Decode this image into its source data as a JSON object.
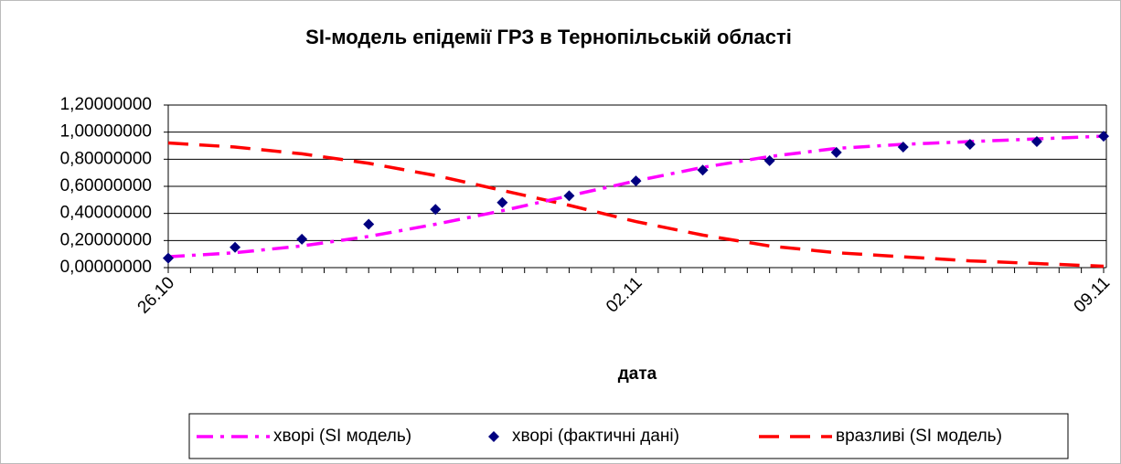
{
  "chart_data": {
    "type": "line",
    "title": "SI-модель епідемії ГРЗ в Тернопільській області",
    "x_label": "дата",
    "categories": [
      "26.10",
      null,
      null,
      null,
      null,
      null,
      null,
      "02.11",
      null,
      null,
      null,
      null,
      null,
      null,
      "09.11"
    ],
    "series": [
      {
        "name": "хворі (SI модель)",
        "color": "#ff00ff",
        "mode": "line",
        "dash": "dash-dot",
        "values": [
          0.08,
          0.11,
          0.16,
          0.23,
          0.32,
          0.42,
          0.53,
          0.64,
          0.74,
          0.82,
          0.88,
          0.91,
          0.93,
          0.95,
          0.97
        ]
      },
      {
        "name": "хворі (фактичні дані)",
        "color": "#000080",
        "mode": "markers",
        "marker": "diamond",
        "values": [
          0.07,
          0.15,
          0.21,
          0.32,
          0.43,
          0.48,
          0.53,
          0.64,
          0.72,
          0.79,
          0.85,
          0.89,
          0.91,
          0.93,
          0.97
        ]
      },
      {
        "name": "вразливі (SI модель)",
        "color": "#ff0000",
        "mode": "line",
        "dash": "dash",
        "values": [
          0.92,
          0.89,
          0.84,
          0.77,
          0.68,
          0.57,
          0.46,
          0.34,
          0.24,
          0.16,
          0.11,
          0.08,
          0.05,
          0.03,
          0.01
        ]
      }
    ],
    "ylim": [
      0,
      1.2
    ],
    "yticks": [
      {
        "value": 0,
        "label": "0,00000000"
      },
      {
        "value": 0.2,
        "label": "0,20000000"
      },
      {
        "value": 0.4,
        "label": "0,40000000"
      },
      {
        "value": 0.6,
        "label": "0,60000000"
      },
      {
        "value": 0.8,
        "label": "0,80000000"
      },
      {
        "value": 1.0,
        "label": "1,00000000"
      },
      {
        "value": 1.2,
        "label": "1,20000000"
      }
    ],
    "grid": true,
    "legend": "bottom"
  }
}
